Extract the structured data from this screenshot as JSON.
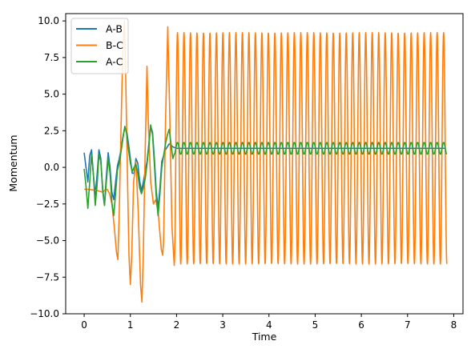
{
  "chart_data": {
    "type": "line",
    "title": "",
    "xlabel": "Time",
    "ylabel": "Momentum",
    "xlim": [
      -0.4,
      8.2
    ],
    "ylim": [
      -10.0,
      10.5
    ],
    "xticks": [
      0,
      1,
      2,
      3,
      4,
      5,
      6,
      7,
      8
    ],
    "xtick_labels": [
      "0",
      "1",
      "2",
      "3",
      "4",
      "5",
      "6",
      "7",
      "8"
    ],
    "yticks": [
      10.0,
      7.5,
      5.0,
      2.5,
      0.0,
      -2.5,
      -5.0,
      -7.5,
      -10.0
    ],
    "ytick_labels": [
      "10.0",
      "7.5",
      "5.0",
      "2.5",
      "0.0",
      "−2.5",
      "−5.0",
      "−7.5",
      "−10.0"
    ],
    "grid": false,
    "legend_position": "top-left",
    "series": [
      {
        "name": "A-B",
        "color": "#1f77b4",
        "points": [
          [
            0.0,
            1.0
          ],
          [
            0.04,
            0.0
          ],
          [
            0.08,
            -1.0
          ],
          [
            0.12,
            0.8
          ],
          [
            0.16,
            1.2
          ],
          [
            0.2,
            -0.5
          ],
          [
            0.24,
            -1.9
          ],
          [
            0.28,
            -0.5
          ],
          [
            0.32,
            1.2
          ],
          [
            0.36,
            0.6
          ],
          [
            0.4,
            -1.6
          ],
          [
            0.44,
            -2.6
          ],
          [
            0.48,
            -0.6
          ],
          [
            0.52,
            1.0
          ],
          [
            0.56,
            0.0
          ],
          [
            0.6,
            -1.7
          ],
          [
            0.64,
            -2.2
          ],
          [
            0.68,
            -1.0
          ],
          [
            0.72,
            0.1
          ],
          [
            0.76,
            0.6
          ],
          [
            0.8,
            1.3
          ],
          [
            0.84,
            2.1
          ],
          [
            0.88,
            2.7
          ],
          [
            0.92,
            2.5
          ],
          [
            0.96,
            1.6
          ],
          [
            1.0,
            0.6
          ],
          [
            1.04,
            -0.4
          ],
          [
            1.08,
            -0.4
          ],
          [
            1.12,
            0.6
          ],
          [
            1.16,
            0.3
          ],
          [
            1.2,
            -0.9
          ],
          [
            1.24,
            -1.6
          ],
          [
            1.28,
            -1.0
          ],
          [
            1.32,
            -0.3
          ],
          [
            1.36,
            0.4
          ],
          [
            1.4,
            1.6
          ],
          [
            1.44,
            2.8
          ],
          [
            1.48,
            2.4
          ],
          [
            1.52,
            0.6
          ],
          [
            1.56,
            -1.6
          ],
          [
            1.6,
            -2.8
          ],
          [
            1.64,
            -1.4
          ],
          [
            1.68,
            0.4
          ],
          [
            1.72,
            0.8
          ],
          [
            1.76,
            1.2
          ],
          [
            1.8,
            1.4
          ],
          [
            1.84,
            1.6
          ],
          [
            1.88,
            1.5
          ],
          [
            1.92,
            1.4
          ],
          [
            2.0,
            1.3
          ],
          [
            7.8,
            1.3
          ]
        ]
      },
      {
        "name": "B-C",
        "color": "#ff7f0e",
        "start": [
          [
            0.0,
            -1.5
          ],
          [
            0.1,
            -1.5
          ],
          [
            0.2,
            -1.55
          ],
          [
            0.3,
            -1.6
          ],
          [
            0.4,
            -1.7
          ],
          [
            0.45,
            -1.55
          ],
          [
            0.5,
            -1.5
          ],
          [
            0.55,
            -1.8
          ],
          [
            0.6,
            -2.5
          ],
          [
            0.65,
            -4.0
          ],
          [
            0.7,
            -5.8
          ],
          [
            0.73,
            -6.3
          ],
          [
            0.76,
            -3.0
          ],
          [
            0.8,
            3.0
          ],
          [
            0.84,
            8.5
          ],
          [
            0.87,
            10.0
          ],
          [
            0.9,
            6.0
          ],
          [
            0.94,
            -1.0
          ],
          [
            0.97,
            -6.0
          ],
          [
            1.0,
            -8.0
          ],
          [
            1.03,
            -6.0
          ],
          [
            1.07,
            -1.0
          ],
          [
            1.12,
            0.4
          ],
          [
            1.17,
            -3.0
          ],
          [
            1.22,
            -8.0
          ],
          [
            1.25,
            -9.2
          ],
          [
            1.28,
            -6.0
          ],
          [
            1.32,
            1.0
          ],
          [
            1.36,
            6.9
          ],
          [
            1.39,
            3.0
          ],
          [
            1.44,
            -1.0
          ],
          [
            1.5,
            -2.5
          ],
          [
            1.55,
            -2.2
          ],
          [
            1.6,
            -3.0
          ],
          [
            1.64,
            -4.5
          ],
          [
            1.67,
            -5.6
          ],
          [
            1.7,
            -6.0
          ],
          [
            1.72,
            -5.0
          ],
          [
            1.76,
            3.0
          ],
          [
            1.81,
            9.6
          ],
          [
            1.85,
            4.0
          ],
          [
            1.9,
            -4.0
          ],
          [
            1.95,
            -6.7
          ]
        ],
        "osc_start": 1.95,
        "osc_end": 7.85,
        "osc_period": 0.1405,
        "osc_max": 9.2,
        "osc_min": -6.6
      },
      {
        "name": "A-C",
        "color": "#2ca02c",
        "start": [
          [
            0.0,
            -0.1
          ],
          [
            0.04,
            -1.3
          ],
          [
            0.08,
            -2.8
          ],
          [
            0.12,
            -1.0
          ],
          [
            0.16,
            0.9
          ],
          [
            0.2,
            -0.5
          ],
          [
            0.24,
            -2.6
          ],
          [
            0.28,
            -1.2
          ],
          [
            0.32,
            0.9
          ],
          [
            0.36,
            0.4
          ],
          [
            0.4,
            -1.4
          ],
          [
            0.44,
            -2.6
          ],
          [
            0.48,
            -1.0
          ],
          [
            0.52,
            0.6
          ],
          [
            0.56,
            -0.4
          ],
          [
            0.6,
            -2.4
          ],
          [
            0.64,
            -3.3
          ],
          [
            0.68,
            -1.8
          ],
          [
            0.72,
            -0.2
          ],
          [
            0.76,
            0.3
          ],
          [
            0.8,
            1.1
          ],
          [
            0.84,
            2.0
          ],
          [
            0.88,
            2.8
          ],
          [
            0.92,
            2.3
          ],
          [
            0.96,
            1.2
          ],
          [
            1.0,
            0.3
          ],
          [
            1.04,
            -0.3
          ],
          [
            1.08,
            0.0
          ],
          [
            1.12,
            0.2
          ],
          [
            1.16,
            -0.4
          ],
          [
            1.2,
            -1.4
          ],
          [
            1.24,
            -1.8
          ],
          [
            1.28,
            -1.4
          ],
          [
            1.32,
            -0.8
          ],
          [
            1.36,
            0.2
          ],
          [
            1.4,
            1.4
          ],
          [
            1.44,
            2.9
          ],
          [
            1.48,
            2.2
          ],
          [
            1.52,
            0.2
          ],
          [
            1.56,
            -2.0
          ],
          [
            1.6,
            -3.3
          ],
          [
            1.64,
            -1.8
          ],
          [
            1.68,
            0.0
          ],
          [
            1.72,
            0.8
          ],
          [
            1.76,
            1.6
          ],
          [
            1.8,
            2.2
          ],
          [
            1.84,
            2.6
          ],
          [
            1.88,
            1.6
          ],
          [
            1.92,
            0.6
          ]
        ],
        "osc_start": 1.95,
        "osc_end": 7.85,
        "osc_period": 0.1405,
        "osc_max": 1.7,
        "osc_min": 0.9
      }
    ]
  }
}
